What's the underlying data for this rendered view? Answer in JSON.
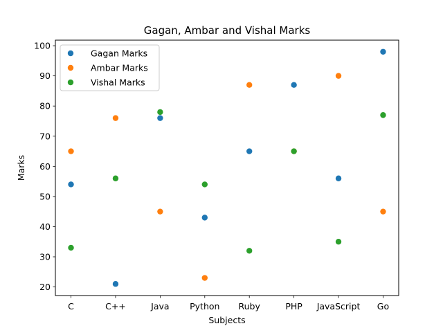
{
  "chart_data": {
    "type": "scatter",
    "title": "Gagan, Ambar and Vishal Marks",
    "xlabel": "Subjects",
    "ylabel": "Marks",
    "categories": [
      "C",
      "C++",
      "Java",
      "Python",
      "Ruby",
      "PHP",
      "JavaScript",
      "Go"
    ],
    "ylim": [
      17.15,
      101.85
    ],
    "yticks": [
      20,
      30,
      40,
      50,
      60,
      70,
      80,
      90,
      100
    ],
    "grid": false,
    "legend_position": "top-left",
    "series": [
      {
        "name": "Gagan Marks",
        "color": "#1f77b4",
        "values": [
          54,
          21,
          76,
          43,
          65,
          87,
          56,
          98
        ]
      },
      {
        "name": "Ambar Marks",
        "color": "#ff7f0e",
        "values": [
          65,
          76,
          45,
          23,
          87,
          65,
          90,
          45
        ]
      },
      {
        "name": "Vishal Marks",
        "color": "#2ca02c",
        "values": [
          33,
          56,
          78,
          54,
          32,
          65,
          35,
          77
        ]
      }
    ]
  }
}
